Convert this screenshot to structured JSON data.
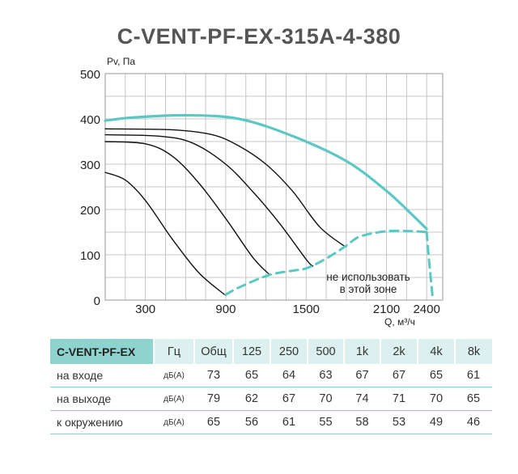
{
  "title": "C-VENT-PF-EX-315A-4-380",
  "chart_data": {
    "type": "line",
    "xlabel": "Q, м³/ч",
    "ylabel": "Pv, Па",
    "xlim": [
      0,
      2520
    ],
    "ylim": [
      0,
      500
    ],
    "x_ticks": [
      300,
      900,
      1500,
      2100,
      2400
    ],
    "y_ticks": [
      0,
      100,
      200,
      300,
      400,
      500
    ],
    "grid": true,
    "annotation": "не использовать\nв этой зоне",
    "series": [
      {
        "role": "max",
        "color": "#5bc8c4",
        "x": [
          0,
          200,
          600,
          1000,
          1400,
          1800,
          2100,
          2300,
          2400
        ],
        "y": [
          396,
          403,
          408,
          400,
          362,
          307,
          241,
          186,
          157
        ]
      },
      {
        "role": "curve",
        "color": "#111111",
        "x": [
          0,
          150,
          300,
          500,
          700,
          900
        ],
        "y": [
          282,
          265,
          220,
          135,
          60,
          10
        ]
      },
      {
        "role": "curve",
        "color": "#111111",
        "x": [
          0,
          300,
          500,
          700,
          900,
          1100,
          1220
        ],
        "y": [
          350,
          345,
          318,
          258,
          180,
          95,
          58
        ]
      },
      {
        "role": "curve",
        "color": "#111111",
        "x": [
          0,
          400,
          650,
          900,
          1100,
          1300,
          1500,
          1550
        ],
        "y": [
          365,
          362,
          347,
          300,
          240,
          170,
          90,
          75
        ]
      },
      {
        "role": "curve",
        "color": "#111111",
        "x": [
          0,
          500,
          800,
          1000,
          1200,
          1400,
          1600,
          1790
        ],
        "y": [
          378,
          376,
          365,
          340,
          300,
          240,
          162,
          118
        ]
      },
      {
        "role": "limit",
        "color": "#5bc8c4",
        "dashed": true,
        "x": [
          900,
          1000,
          1220,
          1400,
          1500,
          1640,
          1790,
          1900,
          2100,
          2300,
          2400
        ],
        "y": [
          12,
          28,
          55,
          65,
          70,
          90,
          118,
          140,
          152,
          152,
          150
        ]
      },
      {
        "role": "limit",
        "color": "#5bc8c4",
        "dashed": true,
        "x": [
          2400,
          2420,
          2445
        ],
        "y": [
          150,
          80,
          5
        ]
      }
    ]
  },
  "table": {
    "model": "C-VENT-PF-EX",
    "hz": "Гц",
    "headers": [
      "Общ",
      "125",
      "250",
      "500",
      "1k",
      "2k",
      "4k",
      "8k"
    ],
    "rows": [
      {
        "label": "на входе",
        "unit": "дБ(А)",
        "values": [
          "73",
          "65",
          "64",
          "63",
          "67",
          "67",
          "65",
          "61"
        ]
      },
      {
        "label": "на выходе",
        "unit": "дБ(А)",
        "values": [
          "79",
          "62",
          "67",
          "70",
          "74",
          "71",
          "70",
          "65"
        ]
      },
      {
        "label": "к окружению",
        "unit": "дБ(А)",
        "values": [
          "65",
          "56",
          "61",
          "55",
          "58",
          "53",
          "49",
          "46"
        ]
      }
    ]
  }
}
